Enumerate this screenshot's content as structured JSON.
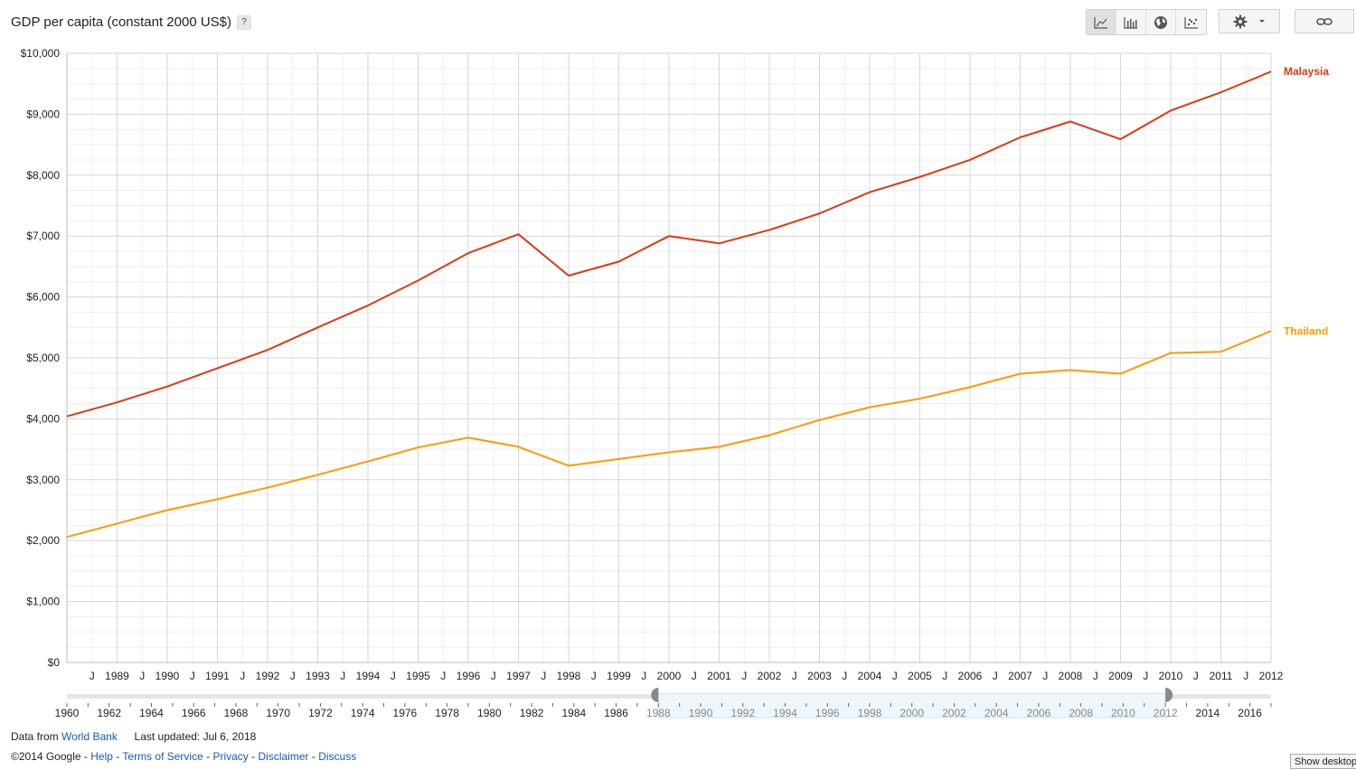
{
  "header": {
    "title": "GDP per capita (constant 2000 US$)",
    "help_label": "?"
  },
  "toolbar": {
    "buttons": [
      "line-chart-icon",
      "bar-chart-icon",
      "globe-icon",
      "scatter-icon"
    ],
    "active": "line-chart-icon"
  },
  "colors": {
    "malaysia": "#dc3912",
    "thailand": "#ff9900",
    "grid": "#e0e0e0",
    "range_fill": "#eef6fb"
  },
  "chart_data": {
    "type": "line",
    "ylim": [
      0,
      10000
    ],
    "y_ticks": [
      "$0",
      "$1,000",
      "$2,000",
      "$3,000",
      "$4,000",
      "$5,000",
      "$6,000",
      "$7,000",
      "$8,000",
      "$9,000",
      "$10,000"
    ],
    "x": [
      1988,
      1989,
      1990,
      1991,
      1992,
      1993,
      1994,
      1995,
      1996,
      1997,
      1998,
      1999,
      2000,
      2001,
      2002,
      2003,
      2004,
      2005,
      2006,
      2007,
      2008,
      2009,
      2010,
      2011,
      2012
    ],
    "x_tick_labels": [
      "1989",
      "1990",
      "1991",
      "1992",
      "1993",
      "1994",
      "1995",
      "1996",
      "1997",
      "1998",
      "1999",
      "2000",
      "2001",
      "2002",
      "2003",
      "2004",
      "2005",
      "2006",
      "2007",
      "2008",
      "2009",
      "2010",
      "2011",
      "2012"
    ],
    "x_half_label": "J",
    "series": [
      {
        "name": "Malaysia",
        "values": [
          4040,
          4270,
          4530,
          4830,
          5130,
          5500,
          5860,
          6270,
          6720,
          7030,
          6350,
          6580,
          7000,
          6880,
          7100,
          7370,
          7720,
          7970,
          8250,
          8620,
          8880,
          8590,
          9060,
          9360,
          9700
        ]
      },
      {
        "name": "Thailand",
        "values": [
          2060,
          2280,
          2500,
          2680,
          2870,
          3080,
          3300,
          3530,
          3690,
          3540,
          3230,
          3340,
          3450,
          3540,
          3730,
          3980,
          4190,
          4330,
          4520,
          4740,
          4800,
          4740,
          5080,
          5100,
          5440
        ]
      }
    ],
    "timeline": {
      "labels": [
        "1960",
        "1962",
        "1964",
        "1966",
        "1968",
        "1970",
        "1972",
        "1974",
        "1976",
        "1978",
        "1980",
        "1982",
        "1984",
        "1986",
        "1988",
        "1990",
        "1992",
        "1994",
        "1996",
        "1998",
        "2000",
        "2002",
        "2004",
        "2006",
        "2008",
        "2010",
        "2012",
        "2014",
        "2016"
      ],
      "first_year": 1960,
      "last_year": 2017,
      "range": [
        1988,
        2012
      ]
    }
  },
  "footer": {
    "data_from": "Data from",
    "source_link": "World Bank",
    "last_updated": "Last updated: Jul 6, 2018",
    "copyright": "©2014 Google -",
    "help_link": "Help",
    "terms_link": "Terms of Service",
    "privacy_link": "Privacy",
    "disclaimer_link": "Disclaimer",
    "discuss_link": "Discuss",
    "sep": "-"
  },
  "show_desktop_label": "Show desktop"
}
